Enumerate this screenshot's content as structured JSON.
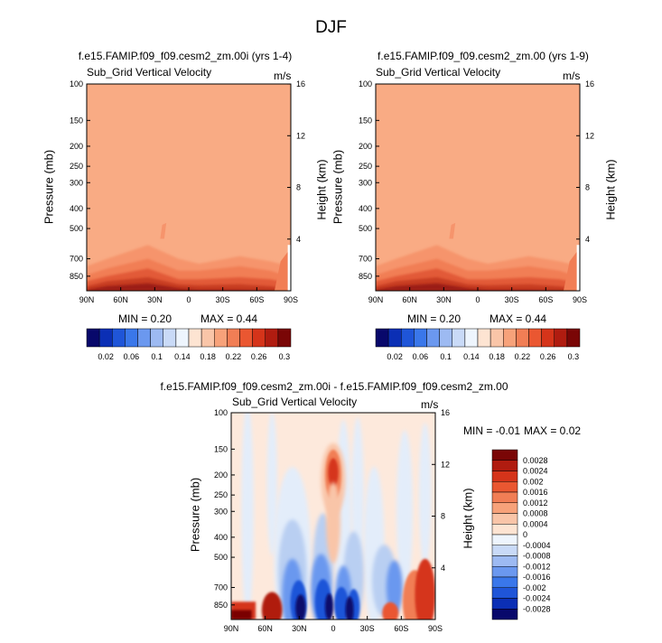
{
  "figure": {
    "title": "DJF"
  },
  "chart_data": [
    {
      "type": "heatmap",
      "title": "f.e15.FAMIP.f09_f09.cesm2_zm.00i (yrs 1-4)",
      "variable": "Sub_Grid Vertical Velocity",
      "units": "m/s",
      "xlabel": "",
      "ylabel": "Pressure (mb)",
      "ylabel_right": "Height (km)",
      "x_ticks": [
        "90N",
        "60N",
        "30N",
        "0",
        "30S",
        "60S",
        "90S"
      ],
      "y_ticks": [
        "100",
        "150",
        "200",
        "250",
        "300",
        "400",
        "500",
        "700",
        "850"
      ],
      "y_ticks_right": [
        "16",
        "12",
        "8",
        "4"
      ],
      "min_label": "MIN =  0.20",
      "max_label": "MAX =  0.44",
      "min": 0.2,
      "max": 0.44,
      "ylim": [
        100,
        1000
      ]
    },
    {
      "type": "heatmap",
      "title": "f.e15.FAMIP.f09_f09.cesm2_zm.00 (yrs 1-9)",
      "variable": "Sub_Grid Vertical Velocity",
      "units": "m/s",
      "xlabel": "",
      "ylabel": "Pressure (mb)",
      "ylabel_right": "Height (km)",
      "x_ticks": [
        "90N",
        "60N",
        "30N",
        "0",
        "30S",
        "60S",
        "90S"
      ],
      "y_ticks": [
        "100",
        "150",
        "200",
        "250",
        "300",
        "400",
        "500",
        "700",
        "850"
      ],
      "y_ticks_right": [
        "16",
        "12",
        "8",
        "4"
      ],
      "min_label": "MIN =  0.20",
      "max_label": "MAX =  0.44",
      "min": 0.2,
      "max": 0.44,
      "ylim": [
        100,
        1000
      ]
    },
    {
      "type": "heatmap",
      "title": "f.e15.FAMIP.f09_f09.cesm2_zm.00i - f.e15.FAMIP.f09_f09.cesm2_zm.00",
      "variable": "Sub_Grid Vertical Velocity",
      "units": "m/s",
      "xlabel": "",
      "ylabel": "Pressure (mb)",
      "ylabel_right": "Height (km)",
      "x_ticks": [
        "90N",
        "60N",
        "30N",
        "0",
        "30S",
        "60S",
        "90S"
      ],
      "y_ticks": [
        "100",
        "150",
        "200",
        "250",
        "300",
        "400",
        "500",
        "700",
        "850"
      ],
      "y_ticks_right": [
        "16",
        "12",
        "8",
        "4"
      ],
      "min_label": "MIN =  -0.01",
      "max_label": "MAX =  0.02",
      "min": -0.01,
      "max": 0.02,
      "ylim": [
        100,
        1000
      ]
    }
  ],
  "colorbar_top": {
    "labels": [
      "0.02",
      "0.06",
      "0.1",
      "0.14",
      "0.18",
      "0.22",
      "0.26",
      "0.3"
    ],
    "colors": [
      "#08086b",
      "#0b2fb5",
      "#1f55d8",
      "#3a77ea",
      "#6b98ef",
      "#9dbaf2",
      "#c9daf7",
      "#eef5fd",
      "#fde4d2",
      "#f9c5a8",
      "#f7a27a",
      "#f17e55",
      "#ea5731",
      "#d5341a",
      "#b01c10",
      "#7a0606"
    ]
  },
  "colorbar_diff": {
    "labels": [
      "0.0028",
      "0.0024",
      "0.002",
      "0.0016",
      "0.0012",
      "0.0008",
      "0.0004",
      "0",
      "-0.0004",
      "-0.0008",
      "-0.0012",
      "-0.0016",
      "-0.002",
      "-0.0024",
      "-0.0028"
    ],
    "colors": [
      "#7a0606",
      "#b01c10",
      "#d5341a",
      "#ea5731",
      "#f17e55",
      "#f7a27a",
      "#f9c5a8",
      "#fde4d2",
      "#eef5fd",
      "#c9daf7",
      "#9dbaf2",
      "#6b98ef",
      "#3a77ea",
      "#1f55d8",
      "#0b2fb5",
      "#08086b"
    ]
  },
  "palette": {
    "base_fill": "#f9ab84",
    "diff_base": "#fde9dc"
  }
}
